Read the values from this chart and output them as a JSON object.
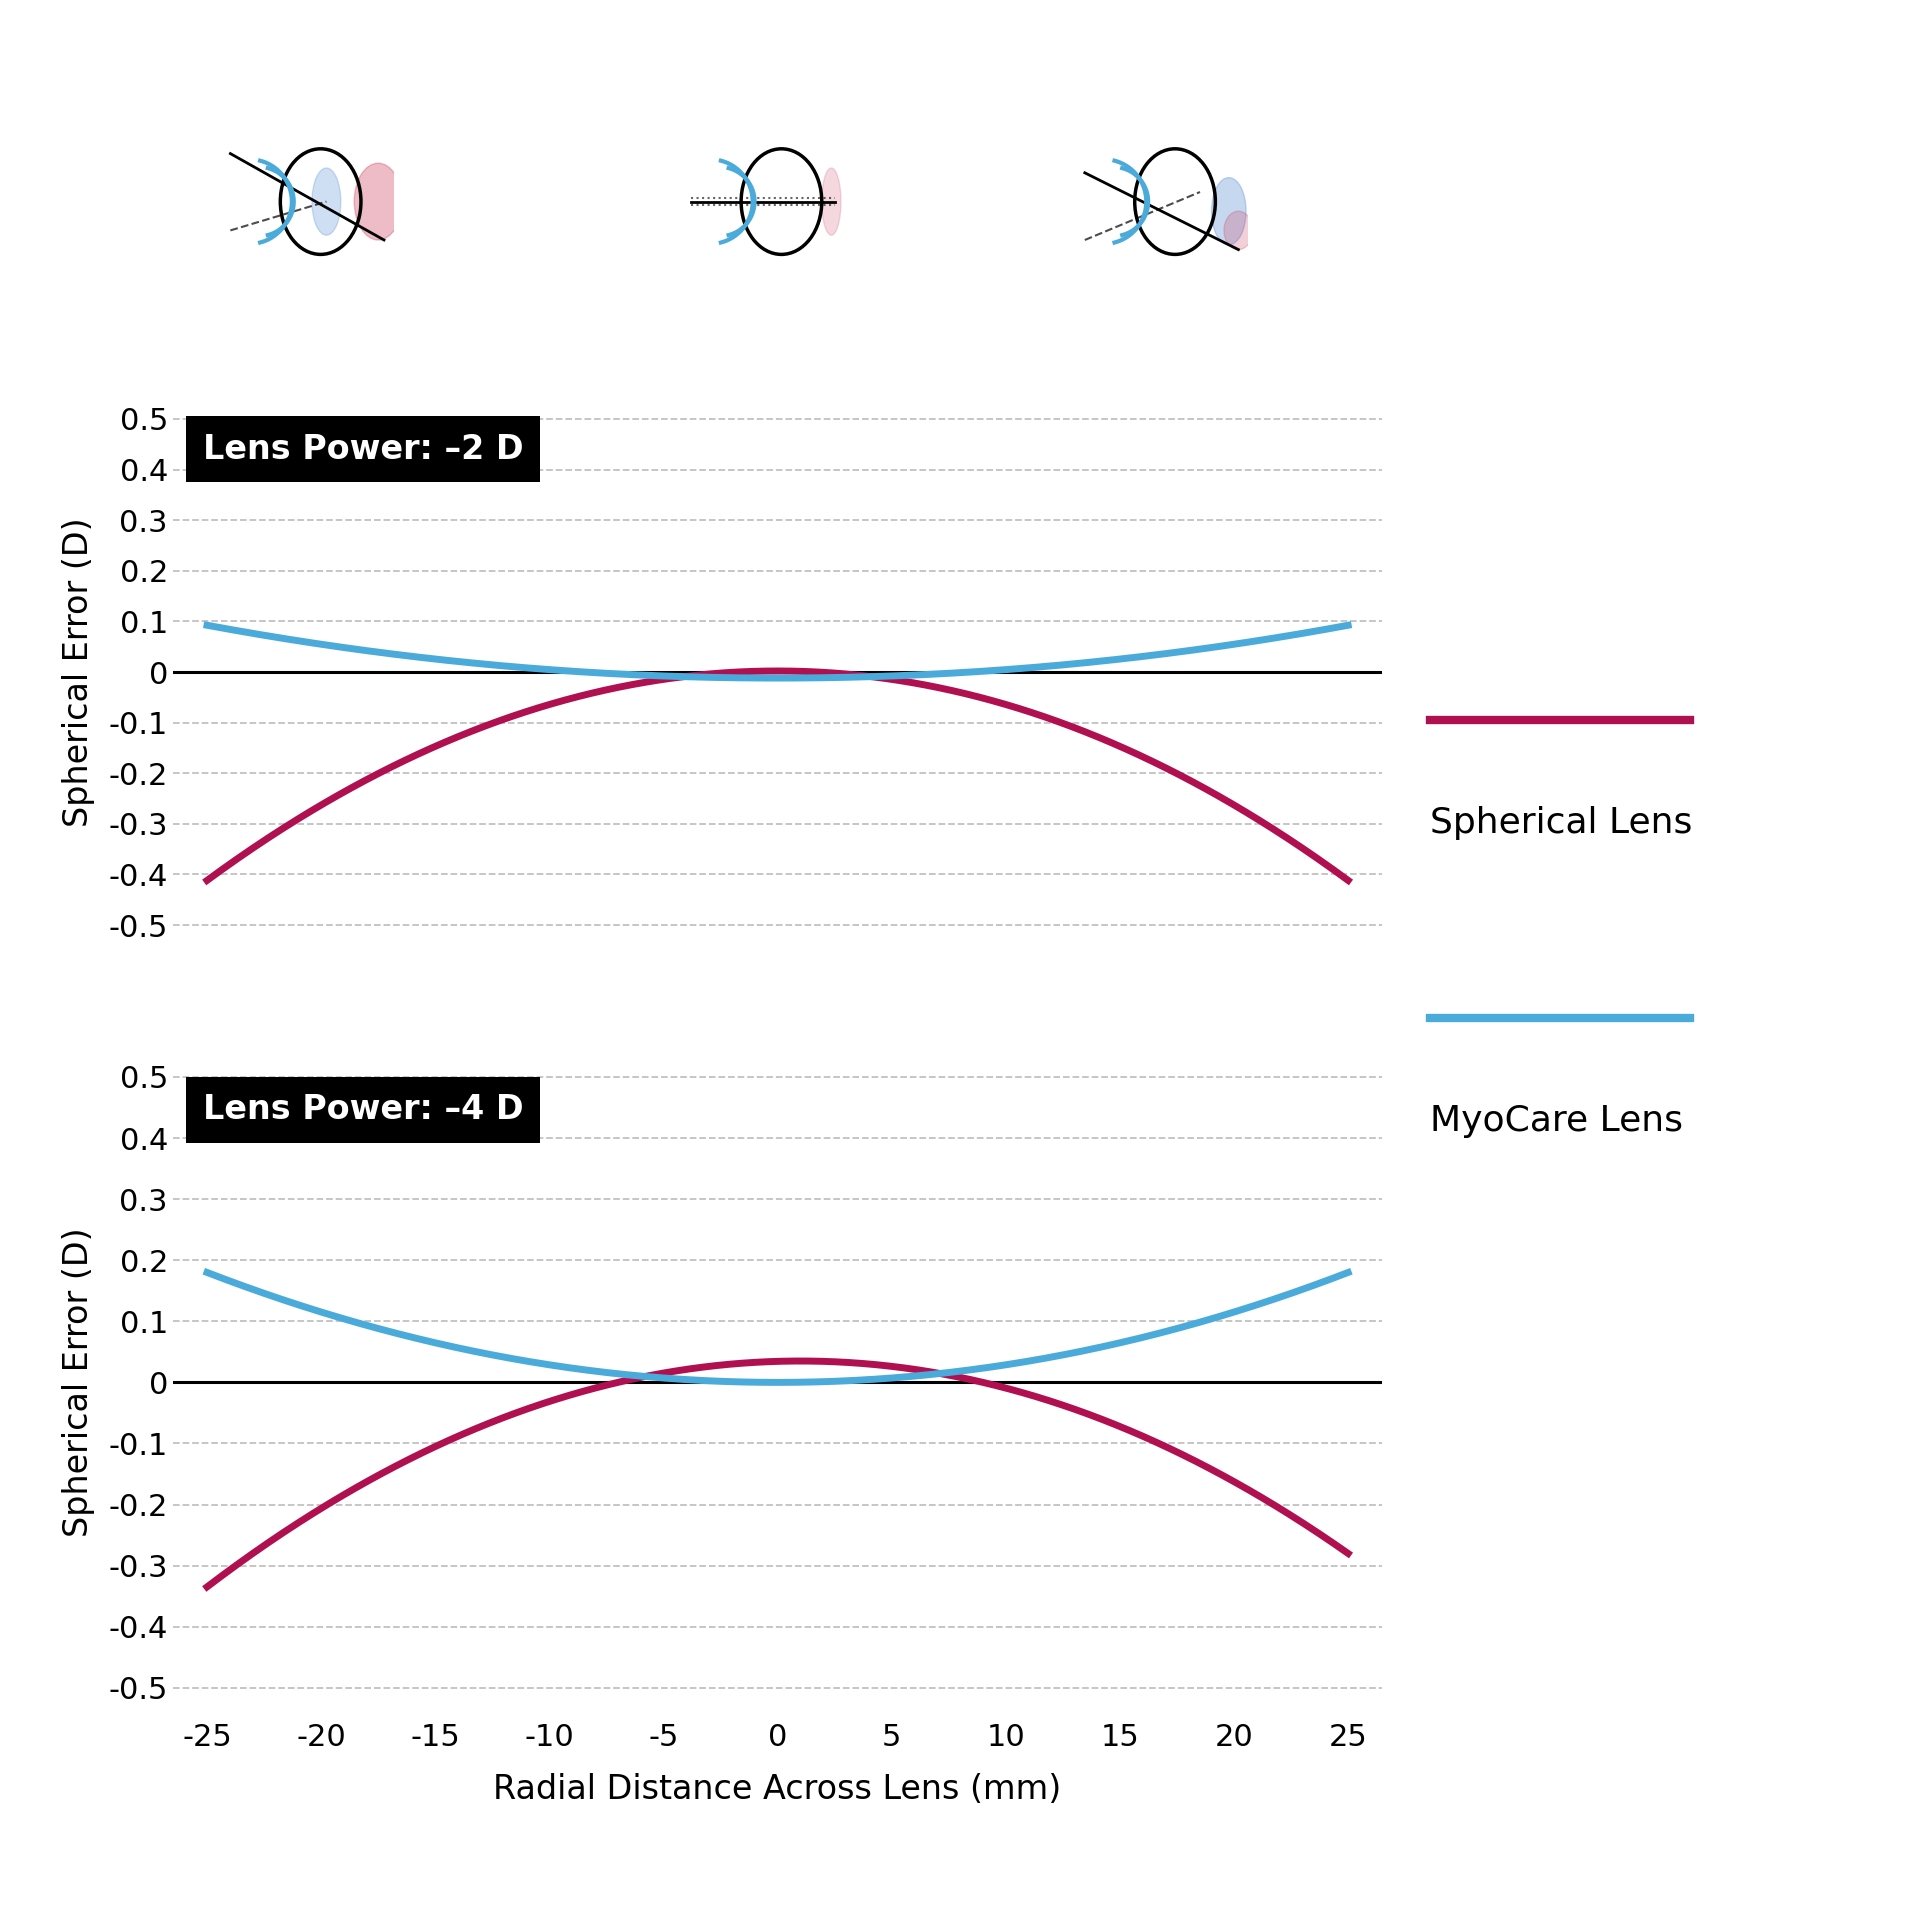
{
  "xlabel": "Radial Distance Across Lens (mm)",
  "ylabel": "Spherical Error (D)",
  "x_ticks": [
    -25,
    -20,
    -15,
    -10,
    -5,
    0,
    5,
    10,
    15,
    20,
    25
  ],
  "ylim": [
    -0.55,
    0.55
  ],
  "yticks": [
    -0.5,
    -0.4,
    -0.3,
    -0.2,
    -0.1,
    0,
    0.1,
    0.2,
    0.3,
    0.4,
    0.5
  ],
  "ytick_labels": [
    "-0.5",
    "-0.4",
    "-0.3",
    "-0.2",
    "-0.1",
    "0",
    "0.1",
    "0.2",
    "0.3",
    "0.4",
    "0.5"
  ],
  "xtick_labels": [
    "-25",
    "-20",
    "-15",
    "-10",
    "-5",
    "0",
    "5",
    "10",
    "15",
    "20",
    "25"
  ],
  "graph1_label": "Lens Power: –2 D",
  "graph2_label": "Lens Power: –4 D",
  "spherical_color": "#B01050",
  "myocare_color": "#4AABDB",
  "background_color": "#FFFFFF",
  "line_width": 5.0,
  "legend_spherical": "Spherical Lens",
  "legend_myocare": "MyoCare Lens",
  "grid_color": "#BBBBBB",
  "zero_line_color": "#000000",
  "tick_fontsize": 22,
  "label_fontsize": 24,
  "legend_fontsize": 26
}
